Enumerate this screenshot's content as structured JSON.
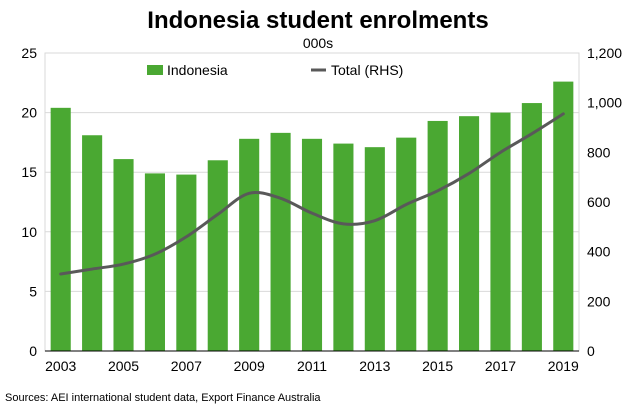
{
  "chart_data": {
    "type": "bar",
    "title": "Indonesia student enrolments",
    "subtitle": "000s",
    "source": "Sources: AEI international student data, Export Finance Australia",
    "categories": [
      "2003",
      "2004",
      "2005",
      "2006",
      "2007",
      "2008",
      "2009",
      "2010",
      "2011",
      "2012",
      "2013",
      "2014",
      "2015",
      "2016",
      "2017",
      "2018",
      "2019"
    ],
    "x_tick_labels": [
      "2003",
      "2005",
      "2007",
      "2009",
      "2011",
      "2013",
      "2015",
      "2017",
      "2019"
    ],
    "series": [
      {
        "name": "Indonesia",
        "type": "bar",
        "axis": "left",
        "color": "#4aa832",
        "values": [
          20.4,
          18.1,
          16.1,
          14.9,
          14.8,
          16.0,
          17.8,
          18.3,
          17.8,
          17.4,
          17.1,
          17.9,
          19.3,
          19.7,
          20.0,
          20.8,
          22.6
        ]
      },
      {
        "name": "Total (RHS)",
        "type": "line",
        "axis": "right",
        "color": "#595959",
        "values": [
          310,
          330,
          350,
          390,
          460,
          550,
          635,
          615,
          555,
          512,
          525,
          590,
          645,
          715,
          800,
          875,
          955
        ]
      }
    ],
    "y_left": {
      "min": 0,
      "max": 25,
      "ticks": [
        "0",
        "5",
        "10",
        "15",
        "20",
        "25"
      ]
    },
    "y_right": {
      "min": 0,
      "max": 1200,
      "ticks": [
        "0",
        "200",
        "400",
        "600",
        "800",
        "1,000",
        "1,200"
      ]
    },
    "grid": true,
    "legend_position": "top"
  }
}
